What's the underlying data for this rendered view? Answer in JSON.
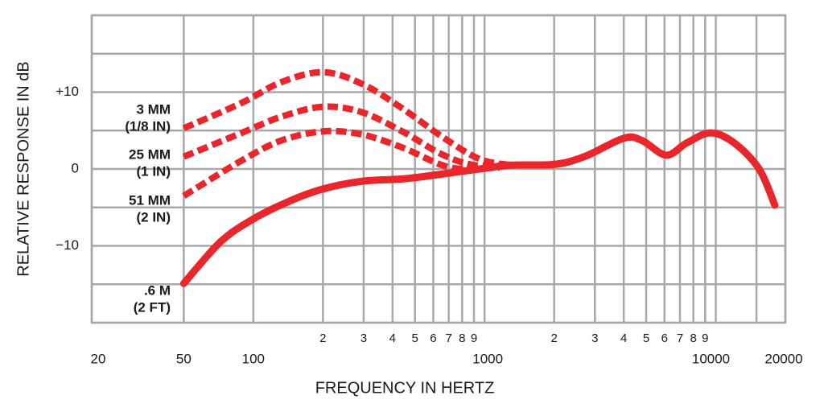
{
  "chart_data": {
    "type": "line",
    "xscale": "log",
    "xlabel": "FREQUENCY IN HERTZ",
    "ylabel": "RELATIVE RESPONSE IN dB",
    "xlim": [
      20,
      20000
    ],
    "ylim": [
      -20,
      20
    ],
    "grid": true,
    "xticks": [
      {
        "value": 20,
        "label": "20"
      },
      {
        "value": 50,
        "label": "50"
      },
      {
        "value": 100,
        "label": "100"
      },
      {
        "value": 200,
        "label": "2"
      },
      {
        "value": 300,
        "label": "3"
      },
      {
        "value": 400,
        "label": "4"
      },
      {
        "value": 500,
        "label": "5"
      },
      {
        "value": 600,
        "label": "6"
      },
      {
        "value": 700,
        "label": "7"
      },
      {
        "value": 800,
        "label": "8"
      },
      {
        "value": 900,
        "label": "9"
      },
      {
        "value": 1000,
        "label": "1000"
      },
      {
        "value": 2000,
        "label": "2"
      },
      {
        "value": 3000,
        "label": "3"
      },
      {
        "value": 4000,
        "label": "4"
      },
      {
        "value": 5000,
        "label": "5"
      },
      {
        "value": 6000,
        "label": "6"
      },
      {
        "value": 7000,
        "label": "7"
      },
      {
        "value": 8000,
        "label": "8"
      },
      {
        "value": 9000,
        "label": "9"
      },
      {
        "value": 10000,
        "label": "10000"
      },
      {
        "value": 15000,
        "label": null
      },
      {
        "value": 20000,
        "label": "20000"
      }
    ],
    "yticks": [
      {
        "value": -20,
        "label": null
      },
      {
        "value": -15,
        "label": null
      },
      {
        "value": -10,
        "label": "−10"
      },
      {
        "value": -5,
        "label": null
      },
      {
        "value": 0,
        "label": "0"
      },
      {
        "value": 5,
        "label": null
      },
      {
        "value": 10,
        "label": "+10"
      },
      {
        "value": 15,
        "label": null
      },
      {
        "value": 20,
        "label": null
      }
    ],
    "series": [
      {
        "name": [
          "3 MM",
          "(1/8 IN)"
        ],
        "color": "#e8262b",
        "style": "dashed",
        "x": [
          50,
          89,
          132,
          200,
          294,
          440,
          655,
          950,
          1300
        ],
        "values": [
          5.3,
          8.6,
          11.3,
          12.6,
          11.1,
          7.9,
          4.2,
          1.3,
          0.5
        ]
      },
      {
        "name": [
          "25 MM",
          "(1 IN)"
        ],
        "color": "#e8262b",
        "style": "dashed",
        "x": [
          50,
          89,
          132,
          200,
          294,
          440,
          655,
          900,
          1240
        ],
        "values": [
          1.6,
          4.7,
          6.8,
          8.1,
          7.4,
          4.9,
          1.9,
          0.5,
          0.5
        ]
      },
      {
        "name": [
          "51 MM",
          "(2 IN)"
        ],
        "color": "#e8262b",
        "style": "dashed",
        "x": [
          50,
          89,
          132,
          200,
          294,
          440,
          655,
          832,
          1160
        ],
        "values": [
          -3.5,
          1.1,
          3.7,
          4.9,
          4.5,
          2.8,
          0.5,
          0,
          0.2
        ]
      },
      {
        "name": [
          ".6 M",
          "(2 FT)"
        ],
        "color": "#e8262b",
        "style": "solid",
        "x": [
          50,
          72,
          100,
          143,
          200,
          294,
          440,
          605,
          950,
          1300,
          2000,
          2700,
          4000,
          4800,
          6100,
          7500,
          9500,
          12000,
          15400,
          18000
        ],
        "values": [
          -14.9,
          -9.5,
          -6.5,
          -4.2,
          -2.6,
          -1.6,
          -1.3,
          -0.8,
          0,
          0.5,
          0.6,
          1.6,
          4.0,
          3.7,
          1.8,
          3.4,
          4.7,
          3.4,
          0,
          -4.7
        ]
      }
    ]
  }
}
